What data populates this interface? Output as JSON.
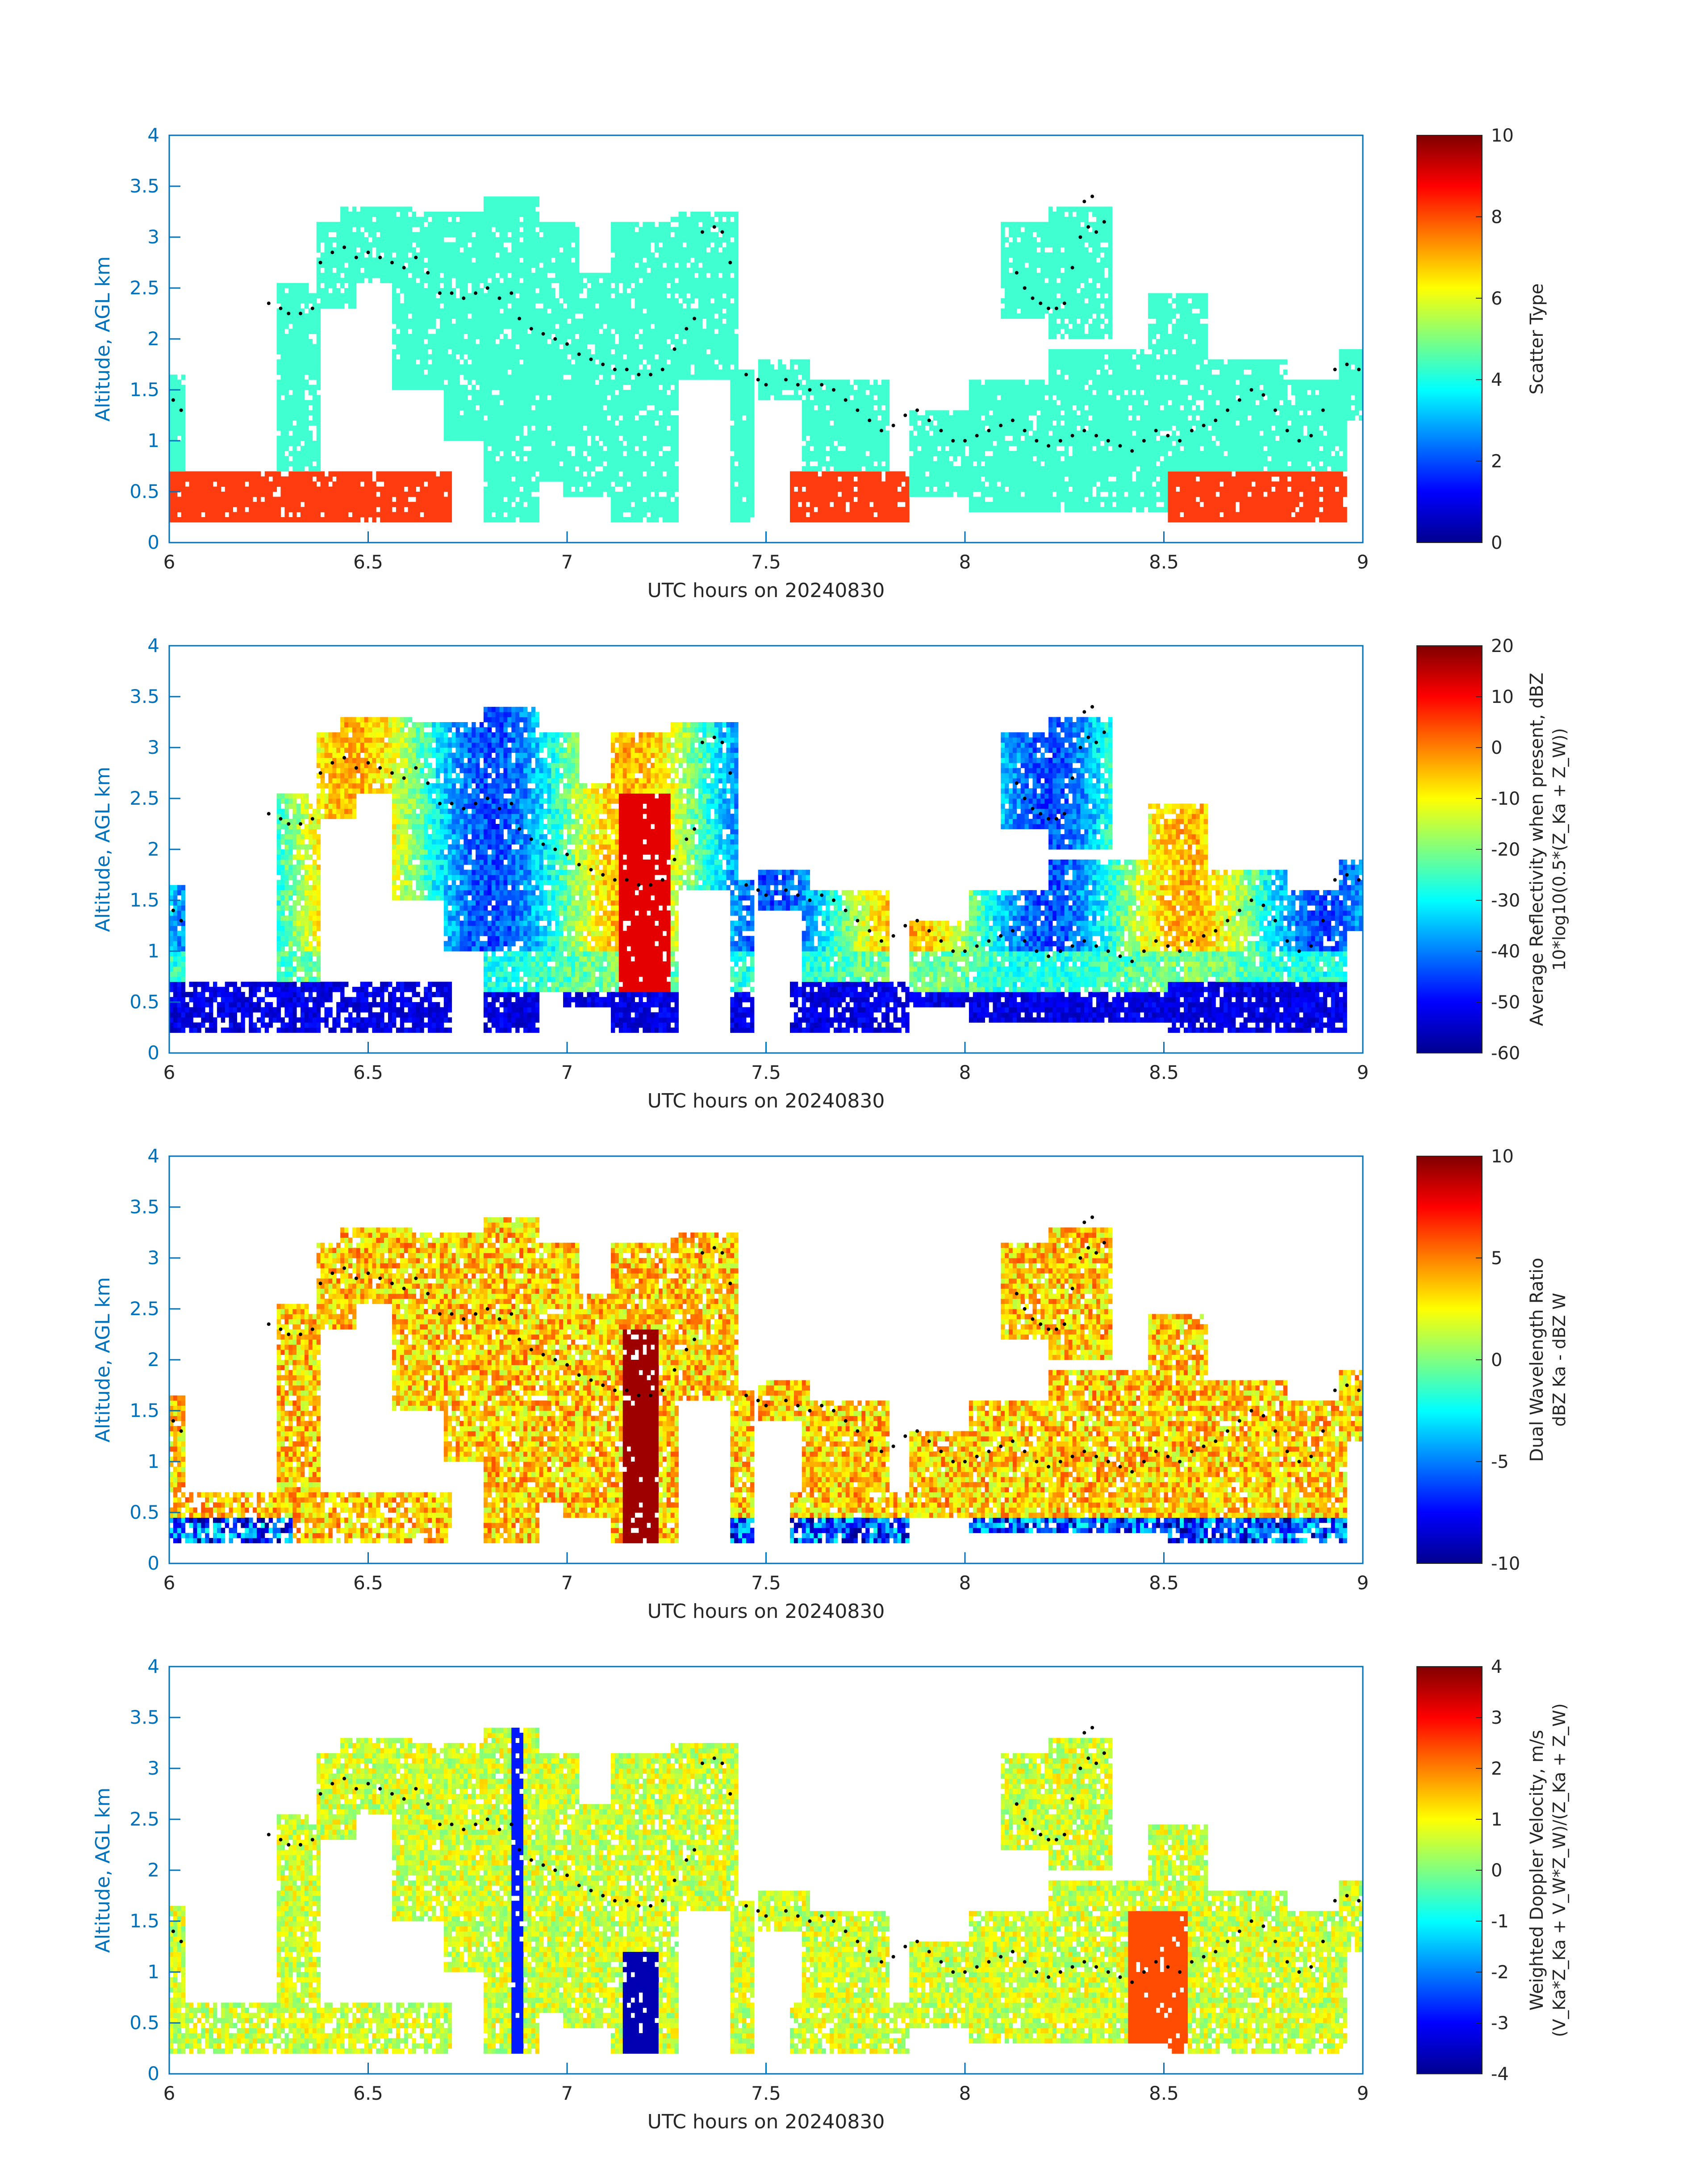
{
  "figure": {
    "xlabel": "UTC hours on 20240830",
    "ylabel": "Altitude, AGL km"
  },
  "colors": {
    "axis_blue": "#0072bd",
    "text_black": "#262626",
    "scatter_cloud": "#40ffd0",
    "scatter_ice": "#ff3c10",
    "marker": "#000000"
  },
  "chart_data": [
    {
      "type": "heatmap",
      "colormap": "jet",
      "xlabel": "UTC hours on 20240830",
      "ylabel": "Altitude, AGL km",
      "xlim": [
        6,
        9
      ],
      "ylim": [
        0,
        4
      ],
      "xticks": [
        6,
        6.5,
        7,
        7.5,
        8,
        8.5,
        9
      ],
      "yticks": [
        0,
        0.5,
        1,
        1.5,
        2,
        2.5,
        3,
        3.5,
        4
      ],
      "colorbar": {
        "min": 0,
        "max": 10,
        "ticks": [
          0,
          2,
          4,
          6,
          8,
          10
        ],
        "label": "Scatter Type",
        "label_line2": ""
      },
      "grid": false
    },
    {
      "type": "heatmap",
      "colormap": "jet",
      "xlabel": "UTC hours on 20240830",
      "ylabel": "Altitude, AGL km",
      "xlim": [
        6,
        9
      ],
      "ylim": [
        0,
        4
      ],
      "xticks": [
        6,
        6.5,
        7,
        7.5,
        8,
        8.5,
        9
      ],
      "yticks": [
        0,
        0.5,
        1,
        1.5,
        2,
        2.5,
        3,
        3.5,
        4
      ],
      "colorbar": {
        "min": -60,
        "max": 20,
        "ticks": [
          -60,
          -50,
          -40,
          -30,
          -20,
          -10,
          0,
          10,
          20
        ],
        "label": "Average Reflectivity when present, dBZ",
        "label_line2": "10*log10(0.5*(Z_Ka + Z_W))"
      },
      "grid": false
    },
    {
      "type": "heatmap",
      "colormap": "jet",
      "xlabel": "UTC hours on 20240830",
      "ylabel": "Altitude, AGL km",
      "xlim": [
        6,
        9
      ],
      "ylim": [
        0,
        4
      ],
      "xticks": [
        6,
        6.5,
        7,
        7.5,
        8,
        8.5,
        9
      ],
      "yticks": [
        0,
        0.5,
        1,
        1.5,
        2,
        2.5,
        3,
        3.5,
        4
      ],
      "colorbar": {
        "min": -10,
        "max": 10,
        "ticks": [
          -10,
          -5,
          0,
          5,
          10
        ],
        "label": "Dual Wavelength Ratio",
        "label_line2": "dBZ Ka - dBZ W"
      },
      "grid": false
    },
    {
      "type": "heatmap",
      "colormap": "jet",
      "xlabel": "UTC hours on 20240830",
      "ylabel": "Altitude, AGL km",
      "xlim": [
        6,
        9
      ],
      "ylim": [
        0,
        4
      ],
      "xticks": [
        6,
        6.5,
        7,
        7.5,
        8,
        8.5,
        9
      ],
      "yticks": [
        0,
        0.5,
        1,
        1.5,
        2,
        2.5,
        3,
        3.5,
        4
      ],
      "colorbar": {
        "min": -4,
        "max": 4,
        "ticks": [
          -4,
          -3,
          -2,
          -1,
          0,
          1,
          2,
          3,
          4
        ],
        "label": "Weighted Doppler Velocity, m/s",
        "label_line2": "(V_Ka*Z_Ka + V_W*Z_W)/(Z_Ka + Z_W)"
      },
      "grid": false
    }
  ],
  "cloud_top_markers": [
    [
      6.01,
      1.4
    ],
    [
      6.03,
      1.3
    ],
    [
      6.25,
      2.35
    ],
    [
      6.28,
      2.3
    ],
    [
      6.3,
      2.25
    ],
    [
      6.33,
      2.25
    ],
    [
      6.36,
      2.3
    ],
    [
      6.38,
      2.75
    ],
    [
      6.41,
      2.85
    ],
    [
      6.44,
      2.9
    ],
    [
      6.47,
      2.8
    ],
    [
      6.5,
      2.85
    ],
    [
      6.53,
      2.8
    ],
    [
      6.56,
      2.75
    ],
    [
      6.59,
      2.7
    ],
    [
      6.62,
      2.8
    ],
    [
      6.65,
      2.65
    ],
    [
      6.68,
      2.45
    ],
    [
      6.71,
      2.45
    ],
    [
      6.74,
      2.4
    ],
    [
      6.77,
      2.45
    ],
    [
      6.8,
      2.5
    ],
    [
      6.83,
      2.4
    ],
    [
      6.86,
      2.45
    ],
    [
      6.88,
      2.2
    ],
    [
      6.91,
      2.1
    ],
    [
      6.94,
      2.05
    ],
    [
      6.97,
      2.0
    ],
    [
      7.0,
      1.95
    ],
    [
      7.03,
      1.85
    ],
    [
      7.06,
      1.8
    ],
    [
      7.09,
      1.75
    ],
    [
      7.12,
      1.7
    ],
    [
      7.15,
      1.7
    ],
    [
      7.18,
      1.65
    ],
    [
      7.21,
      1.65
    ],
    [
      7.24,
      1.7
    ],
    [
      7.27,
      1.9
    ],
    [
      7.3,
      2.1
    ],
    [
      7.32,
      2.2
    ],
    [
      7.34,
      3.05
    ],
    [
      7.37,
      3.1
    ],
    [
      7.39,
      3.05
    ],
    [
      7.41,
      2.75
    ],
    [
      7.45,
      1.65
    ],
    [
      7.48,
      1.6
    ],
    [
      7.5,
      1.55
    ],
    [
      7.55,
      1.6
    ],
    [
      7.58,
      1.55
    ],
    [
      7.61,
      1.5
    ],
    [
      7.64,
      1.55
    ],
    [
      7.67,
      1.5
    ],
    [
      7.7,
      1.4
    ],
    [
      7.73,
      1.3
    ],
    [
      7.76,
      1.2
    ],
    [
      7.79,
      1.1
    ],
    [
      7.82,
      1.15
    ],
    [
      7.85,
      1.25
    ],
    [
      7.88,
      1.3
    ],
    [
      7.91,
      1.2
    ],
    [
      7.94,
      1.1
    ],
    [
      7.97,
      1.0
    ],
    [
      8.0,
      1.0
    ],
    [
      8.03,
      1.05
    ],
    [
      8.06,
      1.1
    ],
    [
      8.09,
      1.15
    ],
    [
      8.12,
      1.2
    ],
    [
      8.15,
      1.1
    ],
    [
      8.18,
      1.0
    ],
    [
      8.21,
      0.95
    ],
    [
      8.24,
      1.0
    ],
    [
      8.27,
      1.05
    ],
    [
      8.3,
      1.1
    ],
    [
      8.33,
      1.05
    ],
    [
      8.36,
      1.0
    ],
    [
      8.39,
      0.95
    ],
    [
      8.42,
      0.9
    ],
    [
      8.45,
      1.0
    ],
    [
      8.48,
      1.1
    ],
    [
      8.51,
      1.05
    ],
    [
      8.54,
      1.0
    ],
    [
      8.57,
      1.1
    ],
    [
      8.6,
      1.15
    ],
    [
      8.63,
      1.2
    ],
    [
      8.66,
      1.3
    ],
    [
      8.69,
      1.4
    ],
    [
      8.72,
      1.5
    ],
    [
      8.75,
      1.45
    ],
    [
      8.78,
      1.3
    ],
    [
      8.81,
      1.1
    ],
    [
      8.84,
      1.0
    ],
    [
      8.87,
      1.05
    ],
    [
      8.9,
      1.3
    ],
    [
      8.93,
      1.7
    ],
    [
      8.96,
      1.75
    ],
    [
      8.99,
      1.7
    ],
    [
      8.13,
      2.65
    ],
    [
      8.15,
      2.5
    ],
    [
      8.17,
      2.4
    ],
    [
      8.19,
      2.35
    ],
    [
      8.21,
      2.3
    ],
    [
      8.23,
      2.3
    ],
    [
      8.25,
      2.35
    ],
    [
      8.27,
      2.7
    ],
    [
      8.29,
      3.0
    ],
    [
      8.31,
      3.1
    ],
    [
      8.33,
      3.05
    ],
    [
      8.35,
      3.15
    ],
    [
      8.32,
      3.4
    ],
    [
      8.3,
      3.35
    ]
  ]
}
